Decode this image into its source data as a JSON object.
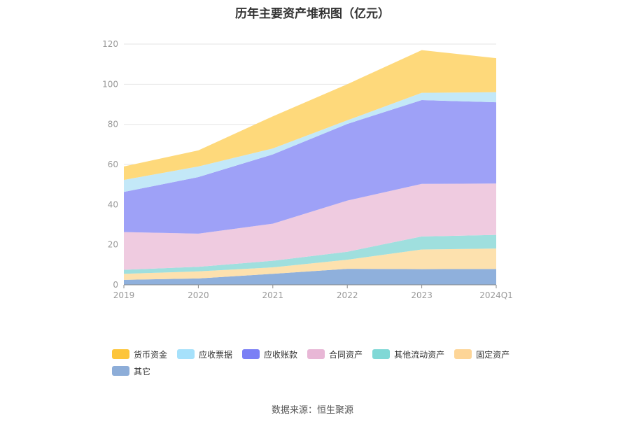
{
  "chart_data": {
    "type": "area",
    "stacked": true,
    "title": "历年主要资产堆积图（亿元）",
    "categories": [
      "2019",
      "2020",
      "2021",
      "2022",
      "2023",
      "2024Q1"
    ],
    "ylim": [
      0,
      120
    ],
    "yticks": [
      0,
      20,
      40,
      60,
      80,
      100,
      120
    ],
    "grid": true,
    "legend_position": "bottom",
    "series": [
      {
        "name": "其它",
        "color": "#8fb0dc",
        "values": [
          2.5,
          3.2,
          5.5,
          8.0,
          7.8,
          7.9
        ]
      },
      {
        "name": "固定资产",
        "color": "#fde1ae",
        "values": [
          3.0,
          3.5,
          3.2,
          4.5,
          9.8,
          10.2
        ]
      },
      {
        "name": "其他流动资产",
        "color": "#9fdfde",
        "values": [
          2.0,
          2.3,
          3.3,
          4.0,
          6.5,
          6.8
        ]
      },
      {
        "name": "合同资产",
        "color": "#efcbe0",
        "values": [
          18.8,
          16.5,
          18.5,
          25.5,
          26.2,
          25.6
        ]
      },
      {
        "name": "应收账款",
        "color": "#9ea1f7",
        "values": [
          20.0,
          28.2,
          34.5,
          38.2,
          41.8,
          40.5
        ]
      },
      {
        "name": "应收票据",
        "color": "#c3e8f8",
        "values": [
          6.0,
          5.3,
          3.0,
          1.8,
          3.6,
          5.0
        ]
      },
      {
        "name": "货币资金",
        "color": "#fed97b",
        "values": [
          6.7,
          8.0,
          16.0,
          18.0,
          21.3,
          17.0
        ]
      }
    ]
  },
  "legend": {
    "items": [
      {
        "label": "货币资金",
        "color": "#fdc53a"
      },
      {
        "label": "应收票据",
        "color": "#a6e1fb"
      },
      {
        "label": "应收账款",
        "color": "#7a7ff5"
      },
      {
        "label": "合同资产",
        "color": "#e8b7d6"
      },
      {
        "label": "其他流动资产",
        "color": "#80d8d6"
      },
      {
        "label": "固定资产",
        "color": "#fdd597"
      },
      {
        "label": "其它",
        "color": "#8dadd8"
      }
    ]
  },
  "source_note": "数据来源：恒生聚源"
}
